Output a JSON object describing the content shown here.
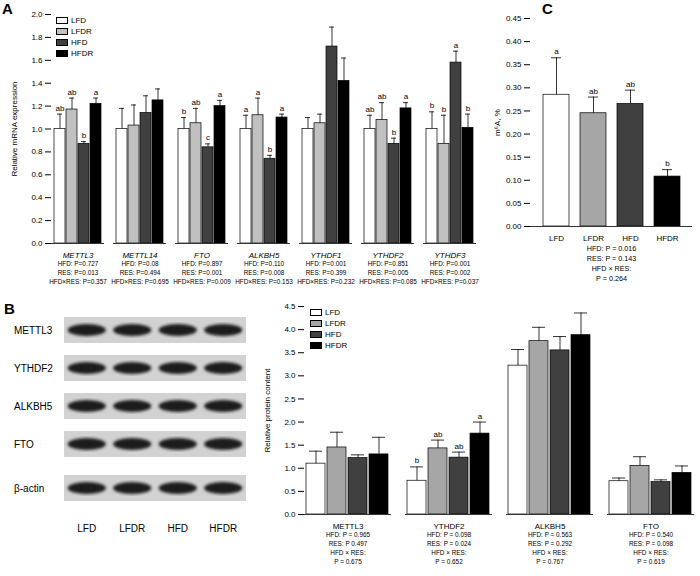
{
  "chart_data": [
    {
      "panel": "A",
      "type": "bar",
      "y_label": "Relative mRNA expression",
      "categories": [
        "METTL3",
        "METTL14",
        "FTO",
        "ALKBH5",
        "YTHDF1",
        "YTHDF2",
        "YTHDF3"
      ],
      "series": [
        {
          "name": "LFD",
          "color": "#ffffff",
          "values": [
            1.0,
            1.0,
            1.0,
            1.0,
            1.0,
            1.0,
            1.0
          ],
          "errors": [
            0.13,
            0.18,
            0.1,
            0.12,
            0.1,
            0.12,
            0.15
          ],
          "letters": [
            "ab",
            null,
            "b",
            "a",
            null,
            "ab",
            "b"
          ]
        },
        {
          "name": "LFDR",
          "color": "#c0c0c0",
          "values": [
            1.17,
            1.03,
            1.05,
            1.12,
            1.05,
            1.08,
            0.87
          ],
          "errors": [
            0.1,
            0.18,
            0.13,
            0.15,
            0.08,
            0.15,
            0.25
          ],
          "letters": [
            "ab",
            null,
            "ab",
            "a",
            null,
            "ab",
            "b"
          ]
        },
        {
          "name": "HFD",
          "color": "#404040",
          "values": [
            0.87,
            1.14,
            0.84,
            0.74,
            1.72,
            0.87,
            1.58
          ],
          "errors": [
            0.02,
            0.15,
            0.03,
            0.03,
            0.17,
            0.05,
            0.1
          ],
          "letters": [
            "b",
            null,
            "c",
            "b",
            null,
            "b",
            "a"
          ]
        },
        {
          "name": "HFDR",
          "color": "#000000",
          "values": [
            1.22,
            1.25,
            1.2,
            1.1,
            1.42,
            1.18,
            1.01
          ],
          "errors": [
            0.05,
            0.1,
            0.05,
            0.03,
            0.2,
            0.05,
            0.12
          ],
          "letters": [
            "a",
            null,
            "a",
            "a",
            null,
            "a",
            "b"
          ]
        }
      ],
      "ylim": [
        0,
        2
      ],
      "yticks": [
        {
          "value": 0,
          "label": "0.0"
        },
        0.2,
        0.4,
        0.6,
        0.8,
        {
          "value": 1,
          "label": "1.0"
        },
        1.2,
        1.4,
        1.6,
        1.8,
        {
          "value": 2,
          "label": "2.0"
        }
      ],
      "legend": "top-left",
      "annotations": [
        [
          "HFD: P=0.727",
          "RES: P=0.013",
          "HFD×RES: P=0.357"
        ],
        [
          "HFD: P=0.08",
          "RES: P=0.494",
          "HFD×RES: P=0.695"
        ],
        [
          "HFD: P=0.897",
          "RES: P=0.001",
          "HFD×RES: P=0.009"
        ],
        [
          "HFD: P=0.110",
          "RES: P=0.008",
          "HFD×RES: P=0.153"
        ],
        [
          "HFD: P=0.001",
          "RES: P=0.399",
          "HFD×RES: P=0.232"
        ],
        [
          "HFD: P=0.851",
          "RES: P=0.005",
          "HFD×RES: P=0.085"
        ],
        [
          "HFD: P=0.001",
          "RES: P=0.002",
          "HFD×RES: P=0.037"
        ]
      ]
    },
    {
      "panel": "B",
      "type": "blot",
      "rows": [
        "METTL3",
        "YTHDF2",
        "ALKBH5",
        "FTO",
        "β-actin"
      ],
      "lanes": [
        "LFD",
        "LFDR",
        "HFD",
        "HFDR"
      ]
    },
    {
      "type": "bar",
      "y_label": "Relative protein content",
      "categories": [
        "METTL3",
        "YTHDF2",
        "ALKBH5",
        "FTO"
      ],
      "series": [
        {
          "name": "LFD",
          "color": "#ffffff",
          "values": [
            1.1,
            0.73,
            3.22,
            0.72
          ],
          "errors": [
            0.27,
            0.3,
            0.35,
            0.07
          ],
          "letters": [
            null,
            "b",
            null,
            null
          ]
        },
        {
          "name": "LFDR",
          "color": "#a6a6a6",
          "values": [
            1.45,
            1.43,
            3.75,
            1.05
          ],
          "errors": [
            0.33,
            0.18,
            0.3,
            0.2
          ],
          "letters": [
            null,
            "ab",
            null,
            null
          ]
        },
        {
          "name": "HFD",
          "color": "#404040",
          "values": [
            1.22,
            1.23,
            3.55,
            0.7
          ],
          "errors": [
            0.07,
            0.12,
            0.3,
            0.05
          ],
          "letters": [
            null,
            "ab",
            null,
            null
          ]
        },
        {
          "name": "HFDR",
          "color": "#000000",
          "values": [
            1.3,
            1.75,
            3.88,
            0.9
          ],
          "errors": [
            0.37,
            0.25,
            0.48,
            0.15
          ],
          "letters": [
            null,
            "a",
            null,
            null
          ]
        }
      ],
      "ylim": [
        0,
        4.5
      ],
      "yticks": [
        {
          "value": 0,
          "label": "0.0"
        },
        0.5,
        {
          "value": 1,
          "label": "1.0"
        },
        1.5,
        {
          "value": 2,
          "label": "2.0"
        },
        2.5,
        {
          "value": 3,
          "label": "3.0"
        },
        3.5,
        {
          "value": 4,
          "label": "4.0"
        },
        4.5
      ],
      "legend": "top-left",
      "annotations": [
        [
          "HFD: P = 0.965",
          "RES: P 0.497",
          "HFD × RES:",
          "P = 0.675"
        ],
        [
          "HFD: P = 0.098",
          "RES: P = 0.024",
          "HFD × RES:",
          "P = 0.652"
        ],
        [
          "HFD: P = 0.563",
          "RES: P = 0.292",
          "HFD × RES:",
          "P = 0.767"
        ],
        [
          "HFD: P = 0.540",
          "RES: P = 0.098",
          "HFD × RES:",
          "P = 0.619"
        ]
      ]
    },
    {
      "panel": "C",
      "type": "bar",
      "y_label": "m⁶A, %",
      "categories": [
        "LFD",
        "LFDR",
        "HFD",
        "HFDR"
      ],
      "values": [
        0.285,
        0.245,
        0.265,
        0.108
      ],
      "errors": [
        0.08,
        0.035,
        0.03,
        0.015
      ],
      "letters": [
        "a",
        "ab",
        "ab",
        "b"
      ],
      "colors": [
        "#ffffff",
        "#a6a6a6",
        "#404040",
        "#000000"
      ],
      "ylim": [
        0,
        0.45
      ],
      "yticks": [
        {
          "value": 0,
          "label": "0.00"
        },
        0.05,
        {
          "value": 0.1,
          "label": "0.10"
        },
        0.15,
        {
          "value": 0.2,
          "label": "0.20"
        },
        0.25,
        {
          "value": 0.3,
          "label": "0.30"
        },
        0.35,
        {
          "value": 0.4,
          "label": "0.40"
        },
        0.45
      ],
      "annotations": [
        "HFD: P = 0.016",
        "RES: P = 0.143",
        "HFD × RES:",
        "P = 0.264"
      ]
    }
  ]
}
